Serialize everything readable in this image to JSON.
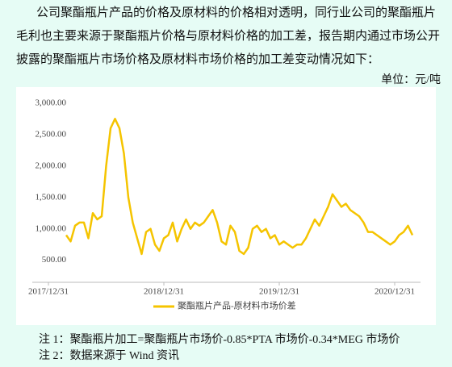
{
  "paragraph": [
    "公司聚酯瓶片产品的价格及原材料的价格相对透明，同行业公司的聚酯瓶片",
    "毛利也主要来源于聚酯瓶片价格与原材料价格的加工差，报告期内通过市场公开",
    "披露的聚酯瓶片市场价格及原材料市场价格的加工差变动情况如下："
  ],
  "unit": "单位：元/吨",
  "chart_data": {
    "type": "line",
    "categories": [
      "2017/12/31",
      null,
      null,
      null,
      null,
      null,
      null,
      null,
      null,
      null,
      null,
      null,
      null,
      null,
      null,
      null,
      null,
      null,
      null,
      null,
      null,
      null,
      null,
      null,
      null,
      null,
      "2018/12/31",
      null,
      null,
      null,
      null,
      null,
      null,
      null,
      null,
      null,
      null,
      null,
      null,
      null,
      null,
      null,
      null,
      null,
      null,
      null,
      null,
      null,
      null,
      null,
      null,
      null,
      "2019/12/31",
      null,
      null,
      null,
      null,
      null,
      null,
      null,
      null,
      null,
      null,
      null,
      null,
      null,
      null,
      null,
      null,
      null,
      null,
      null,
      null,
      null,
      null,
      null,
      null,
      null,
      "2020/12/31",
      null,
      null,
      null,
      null
    ],
    "series": [
      {
        "name": "聚酯瓶片产品-原材料市场价差",
        "color": "#f5c400",
        "values": [
          null,
          null,
          null,
          null,
          900,
          800,
          1050,
          1100,
          1100,
          850,
          1250,
          1150,
          1200,
          2000,
          2600,
          2750,
          2600,
          2200,
          1500,
          1100,
          850,
          600,
          950,
          1000,
          750,
          650,
          850,
          900,
          1100,
          800,
          1000,
          1150,
          1000,
          1100,
          1050,
          1100,
          1200,
          1300,
          1100,
          800,
          750,
          1050,
          950,
          650,
          600,
          700,
          1000,
          1050,
          950,
          1000,
          850,
          900,
          750,
          800,
          750,
          700,
          750,
          750,
          850,
          1000,
          1150,
          1050,
          1200,
          1350,
          1550,
          1450,
          1350,
          1400,
          1300,
          1250,
          1200,
          1100,
          950,
          950,
          900,
          850,
          800,
          750,
          800,
          900,
          950,
          1050,
          900
        ]
      }
    ],
    "ylim": [
      150,
      3100
    ],
    "yticks": [
      {
        "value": 500,
        "label": "500.00"
      },
      {
        "value": 1000,
        "label": "1,000.00"
      },
      {
        "value": 1500,
        "label": "1,500.00"
      },
      {
        "value": 2000,
        "label": "2,000.00"
      },
      {
        "value": 2500,
        "label": "2,500.00"
      },
      {
        "value": 3000,
        "label": "3,000.00"
      }
    ],
    "legend": "bottom"
  },
  "notes": [
    "注 1：聚酯瓶片加工=聚酯瓶片市场价-0.85*PTA 市场价-0.34*MEG 市场价",
    "注 2：数据来源于 Wind 资讯"
  ]
}
